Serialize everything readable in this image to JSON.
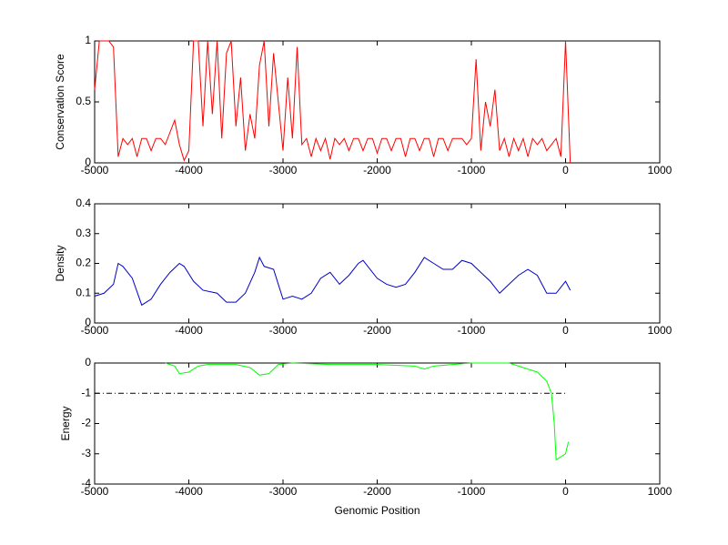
{
  "chart_data": [
    {
      "type": "line",
      "ylabel": "Conservation Score",
      "xlim": [
        -5000,
        1000
      ],
      "xticks": [
        -5000,
        -4000,
        -3000,
        -2000,
        -1000,
        0,
        1000
      ],
      "ylim": [
        0,
        1
      ],
      "yticks": [
        0,
        0.5,
        1
      ],
      "series": [
        {
          "color": "#ff0000",
          "x": [
            -5000,
            -4950,
            -4900,
            -4850,
            -4800,
            -4750,
            -4700,
            -4650,
            -4600,
            -4550,
            -4500,
            -4450,
            -4400,
            -4350,
            -4300,
            -4250,
            -4200,
            -4150,
            -4100,
            -4050,
            -4000,
            -3950,
            -3900,
            -3850,
            -3800,
            -3750,
            -3700,
            -3650,
            -3600,
            -3550,
            -3500,
            -3450,
            -3400,
            -3350,
            -3300,
            -3250,
            -3200,
            -3150,
            -3100,
            -3050,
            -3000,
            -2950,
            -2900,
            -2850,
            -2800,
            -2750,
            -2700,
            -2650,
            -2600,
            -2550,
            -2500,
            -2450,
            -2400,
            -2350,
            -2300,
            -2250,
            -2200,
            -2150,
            -2100,
            -2050,
            -2000,
            -1950,
            -1900,
            -1850,
            -1800,
            -1750,
            -1700,
            -1650,
            -1600,
            -1550,
            -1500,
            -1450,
            -1400,
            -1350,
            -1300,
            -1250,
            -1200,
            -1150,
            -1100,
            -1050,
            -1000,
            -950,
            -900,
            -850,
            -800,
            -750,
            -700,
            -650,
            -600,
            -550,
            -500,
            -450,
            -400,
            -350,
            -300,
            -250,
            -200,
            -150,
            -100,
            -50,
            0,
            50
          ],
          "values": [
            0.6,
            1,
            1,
            1,
            0.95,
            0.05,
            0.2,
            0.15,
            0.2,
            0.05,
            0.2,
            0.2,
            0.1,
            0.2,
            0.2,
            0.15,
            0.25,
            0.35,
            0.15,
            0.02,
            0.1,
            1,
            1,
            0.3,
            1,
            0.4,
            1,
            0.2,
            0.9,
            1,
            0.3,
            0.7,
            0.1,
            0.4,
            0.2,
            0.8,
            1,
            0.3,
            0.9,
            0.5,
            0.1,
            0.7,
            0.2,
            0.95,
            0.15,
            0.2,
            0.05,
            0.2,
            0.1,
            0.2,
            0.03,
            0.2,
            0.15,
            0.2,
            0.1,
            0.2,
            0.2,
            0.1,
            0.2,
            0.2,
            0.08,
            0.2,
            0.2,
            0.1,
            0.2,
            0.2,
            0.05,
            0.2,
            0.2,
            0.1,
            0.2,
            0.2,
            0.05,
            0.2,
            0.2,
            0.1,
            0.2,
            0.2,
            0.2,
            0.15,
            0.2,
            0.85,
            0.1,
            0.5,
            0.3,
            0.6,
            0.1,
            0.2,
            0.05,
            0.2,
            0.1,
            0.2,
            0.05,
            0.2,
            0.15,
            0.2,
            0.1,
            0.15,
            0.2,
            0.05,
            1,
            0
          ]
        }
      ]
    },
    {
      "type": "line",
      "ylabel": "Density",
      "xlim": [
        -5000,
        1000
      ],
      "xticks": [
        -5000,
        -4000,
        -3000,
        -2000,
        -1000,
        0,
        1000
      ],
      "ylim": [
        0,
        0.4
      ],
      "yticks": [
        0,
        0.1,
        0.2,
        0.3,
        0.4
      ],
      "series": [
        {
          "color": "#0000cc",
          "x": [
            -5000,
            -4900,
            -4800,
            -4750,
            -4700,
            -4600,
            -4500,
            -4400,
            -4300,
            -4200,
            -4100,
            -4050,
            -3950,
            -3850,
            -3700,
            -3600,
            -3500,
            -3400,
            -3300,
            -3250,
            -3200,
            -3100,
            -3000,
            -2900,
            -2800,
            -2700,
            -2600,
            -2500,
            -2400,
            -2300,
            -2200,
            -2150,
            -2000,
            -1900,
            -1800,
            -1700,
            -1600,
            -1500,
            -1400,
            -1300,
            -1200,
            -1100,
            -1000,
            -900,
            -800,
            -700,
            -600,
            -500,
            -400,
            -300,
            -200,
            -100,
            0,
            50
          ],
          "values": [
            0.09,
            0.1,
            0.13,
            0.2,
            0.19,
            0.15,
            0.06,
            0.08,
            0.13,
            0.17,
            0.2,
            0.19,
            0.14,
            0.11,
            0.1,
            0.07,
            0.07,
            0.1,
            0.17,
            0.22,
            0.19,
            0.18,
            0.08,
            0.09,
            0.08,
            0.1,
            0.15,
            0.17,
            0.13,
            0.16,
            0.2,
            0.21,
            0.15,
            0.13,
            0.12,
            0.13,
            0.17,
            0.22,
            0.2,
            0.18,
            0.18,
            0.21,
            0.2,
            0.17,
            0.14,
            0.1,
            0.13,
            0.16,
            0.18,
            0.16,
            0.1,
            0.1,
            0.14,
            0.11
          ]
        }
      ]
    },
    {
      "type": "line",
      "ylabel": "Energy",
      "xlabel": "Genomic Position",
      "xlim": [
        -5000,
        1000
      ],
      "xticks": [
        -5000,
        -4000,
        -3000,
        -2000,
        -1000,
        0,
        1000
      ],
      "ylim": [
        -4,
        0
      ],
      "yticks": [
        -4,
        -3,
        -2,
        -1,
        0
      ],
      "series": [
        {
          "color": "#00ff00",
          "x": [
            -4250,
            -4150,
            -4100,
            -4000,
            -3900,
            -3800,
            -3500,
            -3350,
            -3250,
            -3150,
            -3050,
            -2900,
            -2500,
            -2000,
            -1600,
            -1500,
            -1400,
            -1200,
            -1000,
            -600,
            -400,
            -300,
            -200,
            -150,
            -120,
            -100,
            -50,
            0,
            30
          ],
          "values": [
            0,
            -0.1,
            -0.35,
            -0.3,
            -0.1,
            -0.05,
            -0.05,
            -0.15,
            -0.4,
            -0.35,
            -0.05,
            0,
            -0.05,
            -0.05,
            -0.1,
            -0.2,
            -0.1,
            -0.05,
            0,
            0,
            -0.2,
            -0.3,
            -0.6,
            -1,
            -2,
            -3.2,
            -3.1,
            -3,
            -2.6
          ]
        },
        {
          "color": "#000000",
          "dash": "dashdot",
          "x": [
            -5000,
            0
          ],
          "values": [
            -1,
            -1
          ]
        }
      ]
    }
  ]
}
